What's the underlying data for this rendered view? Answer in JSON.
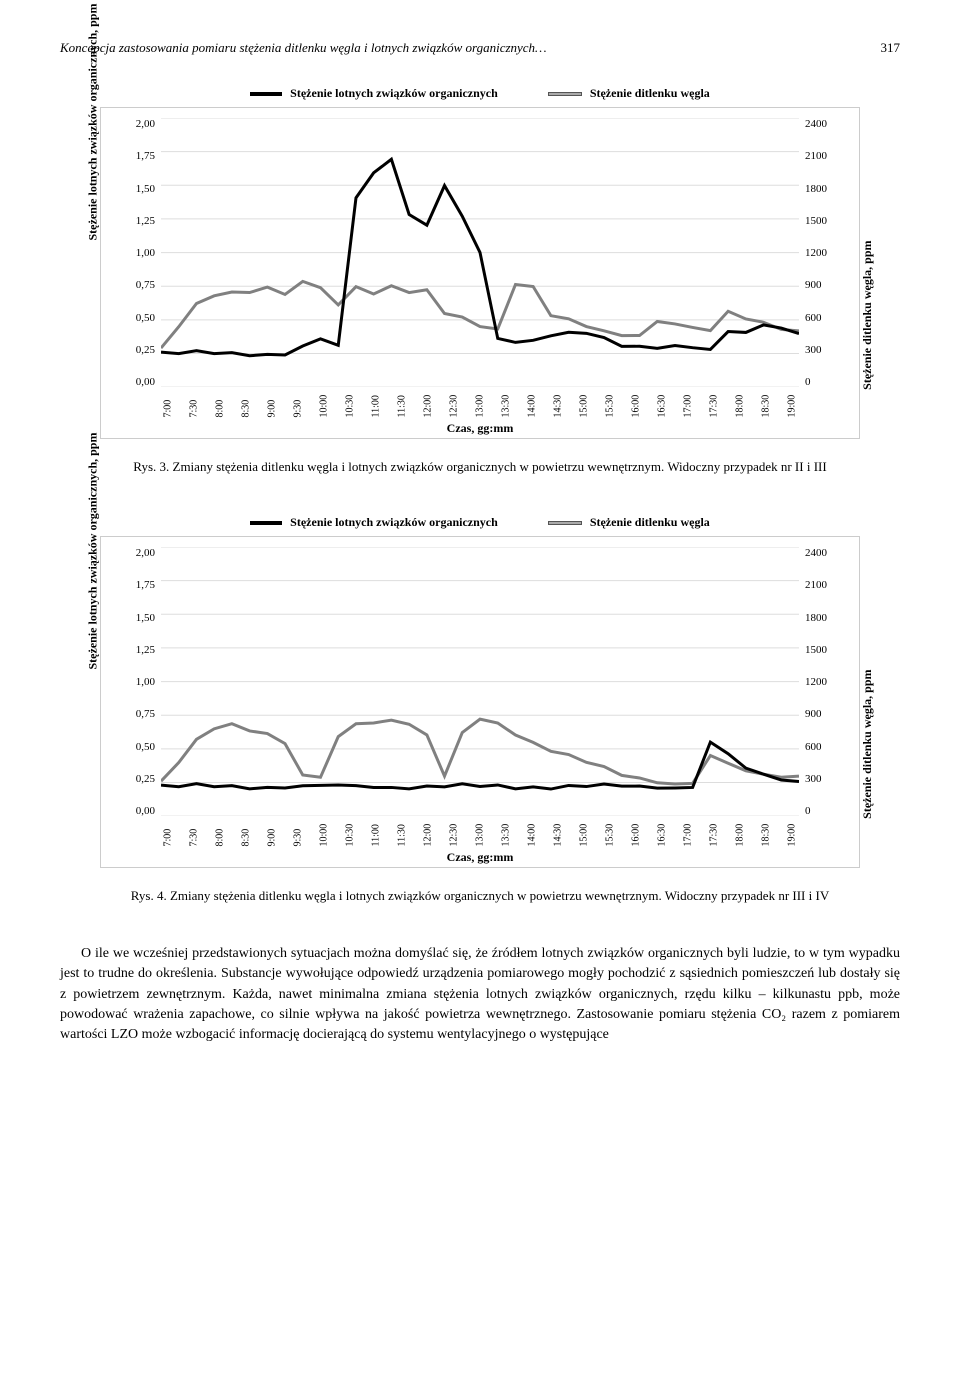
{
  "header": {
    "title": "Koncepcja zastosowania pomiaru stężenia ditlenku węgla i lotnych związków organicznych…",
    "page_number": "317"
  },
  "legend": {
    "series1": "Stężenie lotnych związków organicznych",
    "series2": "Stężenie ditlenku węgla"
  },
  "chart_common": {
    "ylabel_left": "Stężenie lotnych związków organicznych, ppm",
    "ylabel_right": "Stężenie ditlenku węgla, ppm",
    "xlabel": "Czas, gg:mm",
    "left_ticks": [
      "2,00",
      "1,75",
      "1,50",
      "1,25",
      "1,00",
      "0,75",
      "0,50",
      "0,25",
      "0,00"
    ],
    "right_ticks": [
      "2400",
      "2100",
      "1800",
      "1500",
      "1200",
      "900",
      "600",
      "300",
      "0"
    ],
    "x_ticks": [
      "7:00",
      "7:30",
      "8:00",
      "8:30",
      "9:00",
      "9:30",
      "10:00",
      "10:30",
      "11:00",
      "11:30",
      "12:00",
      "12:30",
      "13:00",
      "13:30",
      "14:00",
      "14:30",
      "15:00",
      "15:30",
      "16:00",
      "16:30",
      "17:00",
      "17:30",
      "18:00",
      "18:30",
      "19:00"
    ],
    "y_left_min": 0.0,
    "y_left_max": 2.0,
    "colors": {
      "voc": "#000000",
      "co2": "#808080",
      "grid": "#dddddd",
      "bg": "#ffffff"
    },
    "line_widths": {
      "voc": 3.0,
      "co2": 3.0
    },
    "fontsize_axis": 12,
    "fontsize_tick": 10
  },
  "chart1": {
    "name": "rys3",
    "voc_y": [
      0.25,
      0.25,
      0.25,
      0.25,
      0.25,
      0.25,
      0.25,
      0.25,
      0.3,
      0.35,
      0.3,
      1.4,
      1.6,
      1.7,
      1.3,
      1.2,
      1.5,
      1.25,
      1.0,
      0.35,
      0.35,
      0.35,
      0.4,
      0.4,
      0.4,
      0.35,
      0.3,
      0.3,
      0.3,
      0.32,
      0.3,
      0.28,
      0.4,
      0.4,
      0.45,
      0.45,
      0.4
    ],
    "co2_y": [
      0.28,
      0.45,
      0.6,
      0.68,
      0.7,
      0.72,
      0.75,
      0.7,
      0.78,
      0.73,
      0.6,
      0.74,
      0.7,
      0.76,
      0.72,
      0.72,
      0.55,
      0.5,
      0.45,
      0.42,
      0.78,
      0.75,
      0.55,
      0.5,
      0.45,
      0.4,
      0.38,
      0.38,
      0.5,
      0.48,
      0.45,
      0.42,
      0.55,
      0.5,
      0.47,
      0.44,
      0.42
    ]
  },
  "chart2": {
    "name": "rys4",
    "voc_y": [
      0.22,
      0.22,
      0.22,
      0.22,
      0.22,
      0.22,
      0.22,
      0.22,
      0.22,
      0.22,
      0.22,
      0.22,
      0.22,
      0.22,
      0.22,
      0.22,
      0.22,
      0.22,
      0.22,
      0.22,
      0.22,
      0.22,
      0.22,
      0.22,
      0.22,
      0.22,
      0.22,
      0.22,
      0.22,
      0.22,
      0.22,
      0.55,
      0.45,
      0.35,
      0.3,
      0.28,
      0.26
    ],
    "co2_y": [
      0.25,
      0.4,
      0.55,
      0.65,
      0.68,
      0.65,
      0.62,
      0.55,
      0.3,
      0.28,
      0.58,
      0.68,
      0.7,
      0.72,
      0.7,
      0.6,
      0.3,
      0.6,
      0.72,
      0.68,
      0.62,
      0.55,
      0.5,
      0.45,
      0.4,
      0.35,
      0.3,
      0.28,
      0.26,
      0.25,
      0.25,
      0.45,
      0.38,
      0.33,
      0.3,
      0.3,
      0.3
    ]
  },
  "caption1": "Rys. 3. Zmiany stężenia ditlenku węgla i lotnych związków organicznych w powietrzu wewnętrznym. Widoczny przypadek nr II i III",
  "caption2": "Rys. 4. Zmiany stężenia ditlenku węgla i lotnych związków organicznych w powietrzu wewnętrznym. Widoczny przypadek nr III i IV",
  "body": "O ile we wcześniej przedstawionych sytuacjach można domyślać się, że źródłem lotnych związków organicznych byli ludzie, to w tym wypadku jest to trudne do określenia. Substancje wywołujące odpowiedź urządzenia pomiarowego mogły pochodzić z sąsiednich pomieszczeń lub dostały się z powietrzem zewnętrznym. Każda, nawet minimalna zmiana stężenia lotnych związków organicznych, rzędu kilku – kilkunastu ppb, może powodować wrażenia zapachowe, co silnie wpływa na jakość powietrza wewnętrznego. Zastosowanie pomiaru stężenia CO₂ razem z pomiarem wartości LZO może wzbogacić informację docierającą do systemu wentylacyjnego o występujące"
}
